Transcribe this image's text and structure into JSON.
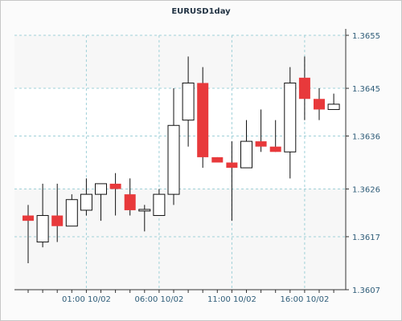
{
  "chart_data": {
    "type": "candlestick",
    "title": "EURUSD1day",
    "y_ticks": [
      "1.3655",
      "1.3645",
      "1.3636",
      "1.3626",
      "1.3617",
      "1.3607"
    ],
    "ylim": [
      1.3607,
      1.3655
    ],
    "x_ticks": [
      "01:00 10/02",
      "06:00 10/02",
      "11:00 10/02",
      "16:00 10/02"
    ],
    "x_tick_candle_index": [
      4,
      9,
      14,
      19
    ],
    "colors": {
      "bull_fill": "#ffffff",
      "bear_fill": "#e8393b",
      "outline": "#111111",
      "grid": "#9fd0d8",
      "axis_text": "#2e5c78"
    },
    "candles": [
      {
        "open": 1.3621,
        "high": 1.3623,
        "low": 1.3612,
        "close": 1.362
      },
      {
        "open": 1.3616,
        "high": 1.3627,
        "low": 1.3615,
        "close": 1.3621
      },
      {
        "open": 1.3621,
        "high": 1.3627,
        "low": 1.3616,
        "close": 1.3619
      },
      {
        "open": 1.3619,
        "high": 1.3625,
        "low": 1.3619,
        "close": 1.3624
      },
      {
        "open": 1.3622,
        "high": 1.3628,
        "low": 1.3621,
        "close": 1.3625
      },
      {
        "open": 1.3625,
        "high": 1.3627,
        "low": 1.362,
        "close": 1.3627
      },
      {
        "open": 1.3627,
        "high": 1.3629,
        "low": 1.3621,
        "close": 1.3626
      },
      {
        "open": 1.3625,
        "high": 1.3628,
        "low": 1.3621,
        "close": 1.3622
      },
      {
        "open": 1.3622,
        "high": 1.3623,
        "low": 1.3618,
        "close": 1.3622
      },
      {
        "open": 1.3621,
        "high": 1.3626,
        "low": 1.3621,
        "close": 1.3625
      },
      {
        "open": 1.3625,
        "high": 1.3645,
        "low": 1.3623,
        "close": 1.3638
      },
      {
        "open": 1.3639,
        "high": 1.3651,
        "low": 1.3634,
        "close": 1.3646
      },
      {
        "open": 1.3646,
        "high": 1.3649,
        "low": 1.363,
        "close": 1.3632
      },
      {
        "open": 1.3632,
        "high": 1.3632,
        "low": 1.3631,
        "close": 1.3631
      },
      {
        "open": 1.3631,
        "high": 1.3635,
        "low": 1.362,
        "close": 1.363
      },
      {
        "open": 1.363,
        "high": 1.3639,
        "low": 1.363,
        "close": 1.3635
      },
      {
        "open": 1.3635,
        "high": 1.3641,
        "low": 1.3633,
        "close": 1.3634
      },
      {
        "open": 1.3634,
        "high": 1.3639,
        "low": 1.3633,
        "close": 1.3633
      },
      {
        "open": 1.3633,
        "high": 1.3649,
        "low": 1.3628,
        "close": 1.3646
      },
      {
        "open": 1.3647,
        "high": 1.3651,
        "low": 1.3639,
        "close": 1.3643
      },
      {
        "open": 1.3643,
        "high": 1.3645,
        "low": 1.3639,
        "close": 1.3641
      },
      {
        "open": 1.3641,
        "high": 1.3644,
        "low": 1.3641,
        "close": 1.3642
      }
    ]
  }
}
